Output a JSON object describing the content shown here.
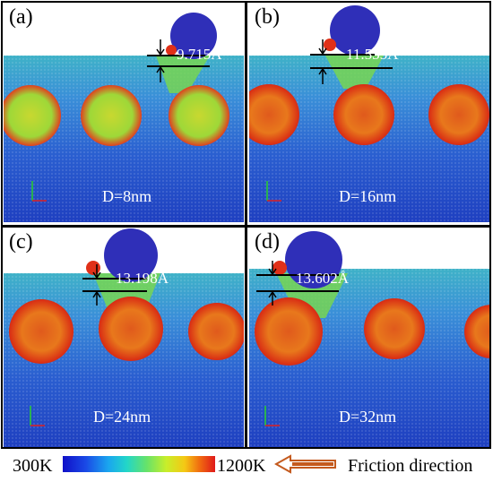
{
  "panels": [
    {
      "label": "(a)",
      "depth": "9.715Å",
      "size": "D=8nm"
    },
    {
      "label": "(b)",
      "depth": "11.535Å",
      "size": "D=16nm"
    },
    {
      "label": "(c)",
      "depth": "13.198Å",
      "size": "D=24nm"
    },
    {
      "label": "(d)",
      "depth": "13.602Å",
      "size": "D=32nm"
    }
  ],
  "legend": {
    "min": "300K",
    "max": "1200K",
    "direction": "Friction direction"
  },
  "colors": {
    "cold": "#1a33c8",
    "hot": "#e0301a",
    "indenter": "#2f2fb8",
    "arrow": "#c45a1e"
  }
}
